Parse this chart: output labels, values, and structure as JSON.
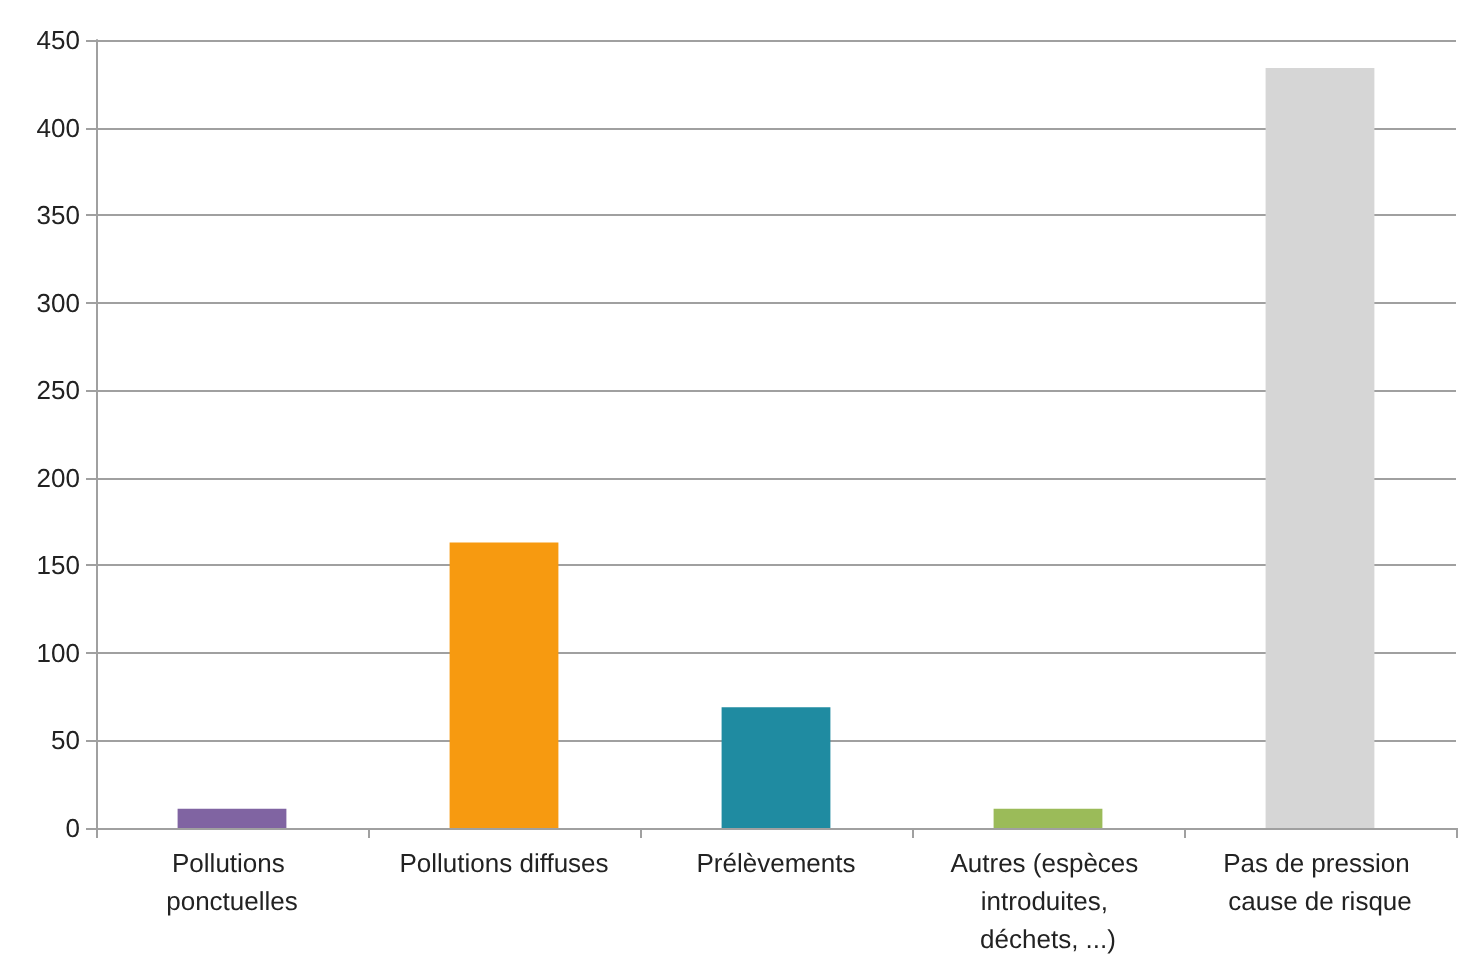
{
  "chart_data": {
    "type": "bar",
    "categories": [
      "Pollutions ponctuelles",
      "Pollutions diffuses",
      "Prélèvements",
      "Autres (espèces introduites, déchets, ...)",
      "Pas de pression cause de risque"
    ],
    "values": [
      11,
      163,
      69,
      11,
      434
    ],
    "colors": [
      "#8064a2",
      "#f79a10",
      "#1f8ba1",
      "#9bbb59",
      "#d6d6d6"
    ],
    "ylim": [
      0,
      450
    ],
    "yticks": [
      0,
      50,
      100,
      150,
      200,
      250,
      300,
      350,
      400,
      450
    ],
    "grid": "y"
  }
}
